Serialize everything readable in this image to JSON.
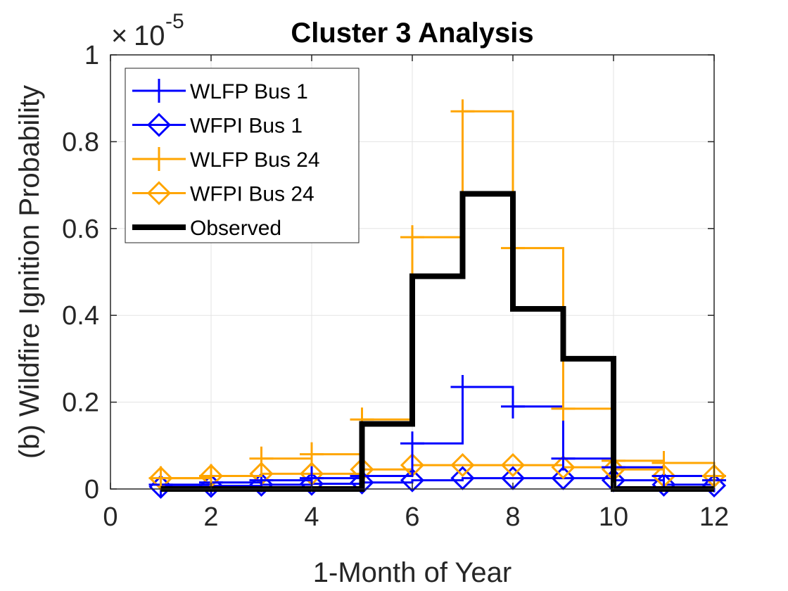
{
  "chart_data": {
    "type": "line",
    "style": "stairs",
    "title": "Cluster 3 Analysis",
    "xlabel": "1-Month of Year",
    "ylabel": "(b) Wildfire Ignition Probability",
    "y_scale_multiplier": "10",
    "y_scale_exponent": "-5",
    "xlim": [
      0,
      12
    ],
    "ylim": [
      0,
      1
    ],
    "xticks": [
      0,
      2,
      4,
      6,
      8,
      10,
      12
    ],
    "xtick_labels": [
      "0",
      "2",
      "4",
      "6",
      "8",
      "10",
      "12"
    ],
    "yticks": [
      0,
      0.2,
      0.4,
      0.6,
      0.8,
      1
    ],
    "ytick_labels": [
      "0",
      "0.2",
      "0.4",
      "0.6",
      "0.8",
      "1"
    ],
    "grid": true,
    "legend_position": "top-left",
    "x": [
      1,
      2,
      3,
      4,
      5,
      6,
      7,
      8,
      9,
      10,
      11,
      12
    ],
    "series": [
      {
        "name": "WLFP Bus 1",
        "color": "#0000ff",
        "marker": "plus",
        "values": [
          0.01,
          0.015,
          0.02,
          0.025,
          0.03,
          0.105,
          0.235,
          0.19,
          0.07,
          0.05,
          0.03,
          0.02
        ]
      },
      {
        "name": "WFPI Bus 1",
        "color": "#0000ff",
        "marker": "diamond",
        "values": [
          0.005,
          0.007,
          0.01,
          0.012,
          0.015,
          0.02,
          0.025,
          0.025,
          0.025,
          0.02,
          0.01,
          0.008
        ]
      },
      {
        "name": "WLFP Bus 24",
        "color": "#ffa500",
        "marker": "plus",
        "values": [
          0.025,
          0.03,
          0.07,
          0.08,
          0.16,
          0.58,
          0.87,
          0.555,
          0.185,
          0.065,
          0.06,
          0.03
        ]
      },
      {
        "name": "WFPI Bus 24",
        "color": "#ffa500",
        "marker": "diamond",
        "values": [
          0.025,
          0.03,
          0.035,
          0.035,
          0.045,
          0.055,
          0.055,
          0.055,
          0.05,
          0.045,
          0.03,
          0.03
        ]
      },
      {
        "name": "Observed",
        "color": "#000000",
        "marker": "none",
        "values": [
          0,
          0,
          0,
          0,
          0.15,
          0.49,
          0.68,
          0.415,
          0.3,
          0,
          0,
          0
        ]
      }
    ]
  }
}
